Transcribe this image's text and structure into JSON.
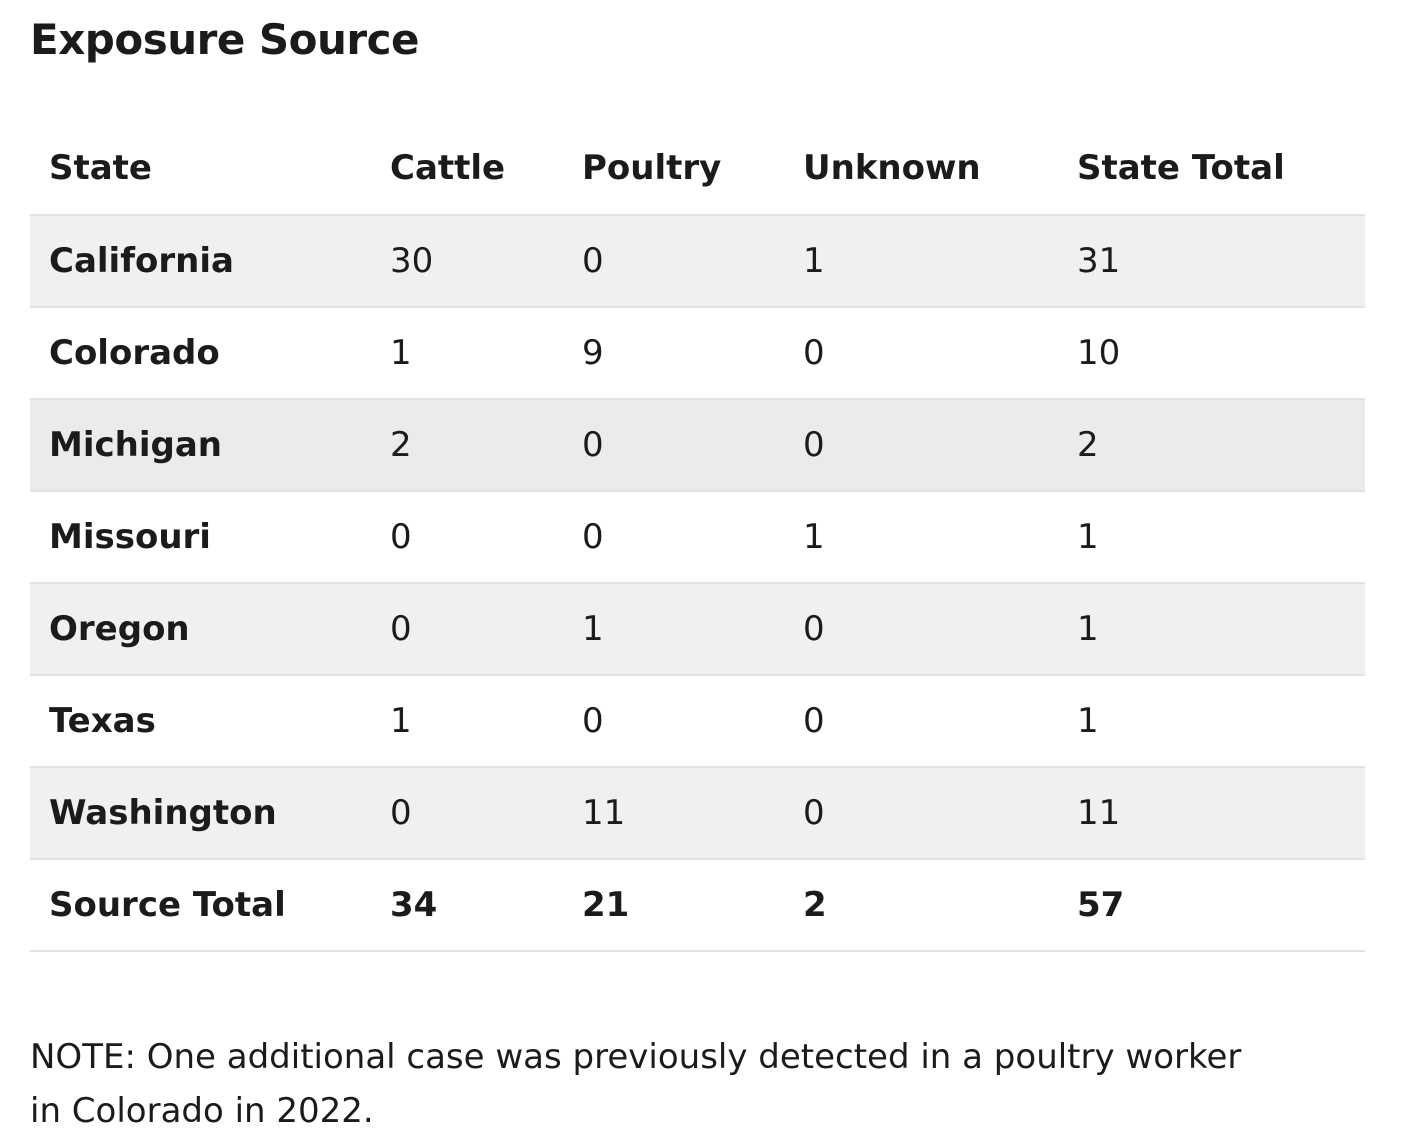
{
  "title": "Exposure Source",
  "table": {
    "headers": [
      "State",
      "Cattle",
      "Poultry",
      "Unknown",
      "State Total"
    ],
    "rows": [
      [
        "California",
        "30",
        "0",
        "1",
        "31"
      ],
      [
        "Colorado",
        "1",
        "9",
        "0",
        "10"
      ],
      [
        "Michigan",
        "2",
        "0",
        "0",
        "2"
      ],
      [
        "Missouri",
        "0",
        "0",
        "1",
        "1"
      ],
      [
        "Oregon",
        "0",
        "1",
        "0",
        "1"
      ],
      [
        "Texas",
        "1",
        "0",
        "0",
        "1"
      ],
      [
        "Washington",
        "0",
        "11",
        "0",
        "11"
      ]
    ],
    "total_row": [
      "Source Total",
      "34",
      "21",
      "2",
      "57"
    ]
  },
  "note": "NOTE: One additional case was previously detected in a poultry worker in Colorado in 2022.",
  "colors": {
    "text": "#1b1b1b",
    "row_band": "#f0f0f0",
    "row_band_alt": "#ebebeb",
    "border": "#dfe1e2"
  }
}
